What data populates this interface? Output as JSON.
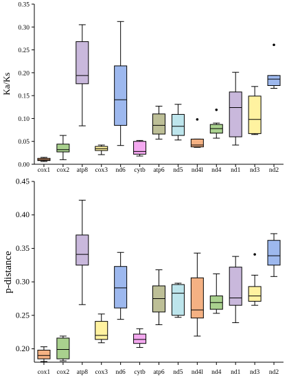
{
  "chart_data": [
    {
      "type": "box",
      "xlabel": "",
      "ylabel": "Ka/Ks",
      "ylim": [
        0,
        0.35
      ],
      "yticks": [
        0.0,
        0.05,
        0.1,
        0.15,
        0.2,
        0.25,
        0.3,
        0.35
      ],
      "grid": false,
      "categories": [
        "cox1",
        "cox2",
        "atp8",
        "cox3",
        "nd6",
        "cytb",
        "atp6",
        "nd5",
        "nd4l",
        "nd4",
        "nd1",
        "nd3",
        "nd2"
      ],
      "boxes": [
        {
          "gene": "cox1",
          "whisker_low": 0.006,
          "q1": 0.008,
          "median": 0.01,
          "q3": 0.013,
          "whisker_high": 0.015,
          "outliers": [],
          "color": "#F4B183"
        },
        {
          "gene": "cox2",
          "whisker_low": 0.01,
          "q1": 0.027,
          "median": 0.032,
          "q3": 0.044,
          "whisker_high": 0.063,
          "outliers": [],
          "color": "#A9D18E"
        },
        {
          "gene": "atp8",
          "whisker_low": 0.084,
          "q1": 0.176,
          "median": 0.194,
          "q3": 0.268,
          "whisker_high": 0.305,
          "outliers": [],
          "color": "#C9B8DC"
        },
        {
          "gene": "cox3",
          "whisker_low": 0.021,
          "q1": 0.03,
          "median": 0.034,
          "q3": 0.039,
          "whisker_high": 0.042,
          "outliers": [],
          "color": "#FFF2A0"
        },
        {
          "gene": "nd6",
          "whisker_low": 0.041,
          "q1": 0.085,
          "median": 0.141,
          "q3": 0.215,
          "whisker_high": 0.312,
          "outliers": [],
          "color": "#9DB8EE"
        },
        {
          "gene": "cytb",
          "whisker_low": 0.018,
          "q1": 0.022,
          "median": 0.028,
          "q3": 0.05,
          "whisker_high": 0.052,
          "outliers": [],
          "color": "#F4A9F0"
        },
        {
          "gene": "atp6",
          "whisker_low": 0.055,
          "q1": 0.066,
          "median": 0.085,
          "q3": 0.11,
          "whisker_high": 0.127,
          "outliers": [],
          "color": "#BDBF97"
        },
        {
          "gene": "nd5",
          "whisker_low": 0.053,
          "q1": 0.063,
          "median": 0.083,
          "q3": 0.109,
          "whisker_high": 0.131,
          "outliers": [],
          "color": "#BDE5EC"
        },
        {
          "gene": "nd4l",
          "whisker_low": 0.037,
          "q1": 0.038,
          "median": 0.042,
          "q3": 0.055,
          "whisker_high": 0.055,
          "outliers": [
            0.098
          ],
          "color": "#F4B183"
        },
        {
          "gene": "nd4",
          "whisker_low": 0.057,
          "q1": 0.068,
          "median": 0.078,
          "q3": 0.087,
          "whisker_high": 0.09,
          "outliers": [
            0.119
          ],
          "color": "#A9D18E"
        },
        {
          "gene": "nd1",
          "whisker_low": 0.042,
          "q1": 0.06,
          "median": 0.124,
          "q3": 0.158,
          "whisker_high": 0.201,
          "outliers": [],
          "color": "#C9B8DC"
        },
        {
          "gene": "nd3",
          "whisker_low": 0.065,
          "q1": 0.067,
          "median": 0.098,
          "q3": 0.149,
          "whisker_high": 0.17,
          "outliers": [],
          "color": "#FFF2A0"
        },
        {
          "gene": "nd2",
          "whisker_low": 0.166,
          "q1": 0.172,
          "median": 0.186,
          "q3": 0.194,
          "whisker_high": 0.194,
          "outliers": [
            0.261
          ],
          "color": "#9DB8EE"
        }
      ]
    },
    {
      "type": "box",
      "xlabel": "",
      "ylabel": "p-distance",
      "ylim": [
        0.18,
        0.45
      ],
      "yticks": [
        0.2,
        0.25,
        0.3,
        0.35,
        0.4,
        0.45
      ],
      "grid": false,
      "categories": [
        "cox1",
        "cox2",
        "atp8",
        "cox3",
        "nd6",
        "cytb",
        "atp6",
        "nd5",
        "nd4l",
        "nd4",
        "nd1",
        "nd3",
        "nd2"
      ],
      "boxes": [
        {
          "gene": "cox1",
          "whisker_low": 0.181,
          "q1": 0.185,
          "median": 0.19,
          "q3": 0.198,
          "whisker_high": 0.203,
          "outliers": [],
          "color": "#F4B183"
        },
        {
          "gene": "cox2",
          "whisker_low": 0.182,
          "q1": 0.185,
          "median": 0.199,
          "q3": 0.216,
          "whisker_high": 0.219,
          "outliers": [],
          "color": "#A9D18E"
        },
        {
          "gene": "atp8",
          "whisker_low": 0.266,
          "q1": 0.325,
          "median": 0.341,
          "q3": 0.37,
          "whisker_high": 0.422,
          "outliers": [],
          "color": "#C9B8DC"
        },
        {
          "gene": "cox3",
          "whisker_low": 0.209,
          "q1": 0.214,
          "median": 0.22,
          "q3": 0.241,
          "whisker_high": 0.252,
          "outliers": [],
          "color": "#FFF2A0"
        },
        {
          "gene": "nd6",
          "whisker_low": 0.244,
          "q1": 0.261,
          "median": 0.291,
          "q3": 0.323,
          "whisker_high": 0.344,
          "outliers": [],
          "color": "#9DB8EE"
        },
        {
          "gene": "cytb",
          "whisker_low": 0.202,
          "q1": 0.208,
          "median": 0.214,
          "q3": 0.222,
          "whisker_high": 0.23,
          "outliers": [],
          "color": "#F4A9F0"
        },
        {
          "gene": "atp6",
          "whisker_low": 0.236,
          "q1": 0.255,
          "median": 0.275,
          "q3": 0.294,
          "whisker_high": 0.318,
          "outliers": [],
          "color": "#BDBF97"
        },
        {
          "gene": "nd5",
          "whisker_low": 0.247,
          "q1": 0.25,
          "median": 0.283,
          "q3": 0.296,
          "whisker_high": 0.298,
          "outliers": [],
          "color": "#BDE5EC"
        },
        {
          "gene": "nd4l",
          "whisker_low": 0.219,
          "q1": 0.246,
          "median": 0.258,
          "q3": 0.306,
          "whisker_high": 0.343,
          "outliers": [],
          "color": "#F4B183"
        },
        {
          "gene": "nd4",
          "whisker_low": 0.253,
          "q1": 0.259,
          "median": 0.269,
          "q3": 0.279,
          "whisker_high": 0.312,
          "outliers": [],
          "color": "#A9D18E"
        },
        {
          "gene": "nd1",
          "whisker_low": 0.239,
          "q1": 0.265,
          "median": 0.276,
          "q3": 0.322,
          "whisker_high": 0.338,
          "outliers": [],
          "color": "#C9B8DC"
        },
        {
          "gene": "nd3",
          "whisker_low": 0.265,
          "q1": 0.271,
          "median": 0.279,
          "q3": 0.293,
          "whisker_high": 0.31,
          "outliers": [
            0.341
          ],
          "color": "#FFF2A0"
        },
        {
          "gene": "nd2",
          "whisker_low": 0.308,
          "q1": 0.325,
          "median": 0.339,
          "q3": 0.362,
          "whisker_high": 0.372,
          "outliers": [],
          "color": "#9DB8EE"
        }
      ]
    }
  ]
}
